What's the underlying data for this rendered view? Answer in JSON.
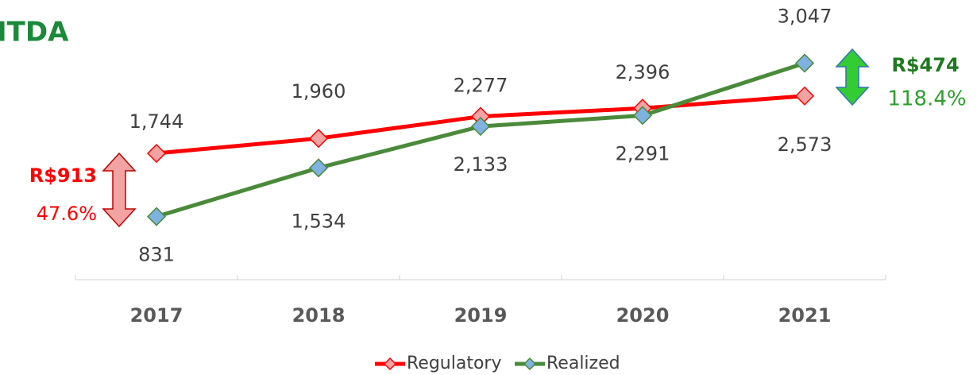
{
  "chart_data": {
    "type": "line",
    "title": "ITDA",
    "categories": [
      "2017",
      "2018",
      "2019",
      "2020",
      "2021"
    ],
    "series": [
      {
        "name": "Regulatory",
        "color": "#ff0000",
        "marker_color": "#f4a3a3",
        "values": [
          1744,
          1960,
          2277,
          2396,
          2573
        ],
        "value_labels": [
          "1,744",
          "1,960",
          "2,277",
          "2,396",
          "2,573"
        ]
      },
      {
        "name": "Realized",
        "color": "#4a8a3a",
        "marker_color": "#7fb2e0",
        "values": [
          831,
          1534,
          2133,
          2291,
          3047
        ],
        "value_labels": [
          "831",
          "1,534",
          "2,133",
          "2,291",
          "3,047"
        ]
      }
    ],
    "annotations": [
      {
        "text": "R$913",
        "subtext": "47.6%",
        "color": "#ff0000"
      },
      {
        "text": "R$474",
        "subtext": "118.4%",
        "color": "#1f7a1f"
      }
    ],
    "ylim": [
      0,
      3500
    ],
    "legend": "bottom"
  }
}
